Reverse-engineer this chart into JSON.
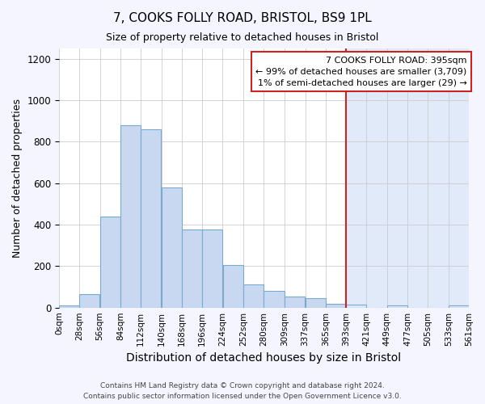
{
  "title": "7, COOKS FOLLY ROAD, BRISTOL, BS9 1PL",
  "subtitle": "Size of property relative to detached houses in Bristol",
  "xlabel": "Distribution of detached houses by size in Bristol",
  "ylabel": "Number of detached properties",
  "bar_color_left": "#c8d8f0",
  "bar_edge_color": "#7aabcf",
  "bar_color_right": "#dce8f8",
  "highlight_bg_color": "#e0eaf8",
  "vline_color": "#cc2222",
  "vline_x": 393,
  "annotation_text": "7 COOKS FOLLY ROAD: 395sqm\n← 99% of detached houses are smaller (3,709)\n1% of semi-detached houses are larger (29) →",
  "bin_edges": [
    0,
    28,
    56,
    84,
    112,
    140,
    168,
    196,
    224,
    252,
    280,
    309,
    337,
    365,
    393,
    421,
    449,
    477,
    505,
    533,
    561
  ],
  "bar_heights": [
    10,
    65,
    440,
    880,
    860,
    580,
    375,
    375,
    205,
    110,
    80,
    55,
    45,
    20,
    15,
    0,
    10,
    0,
    0,
    10
  ],
  "ylim": [
    0,
    1250
  ],
  "yticks": [
    0,
    200,
    400,
    600,
    800,
    1000,
    1200
  ],
  "footer_text": "Contains HM Land Registry data © Crown copyright and database right 2024.\nContains public sector information licensed under the Open Government Licence v3.0.",
  "bg_color": "#f5f5ff",
  "plot_bg_color": "#ffffff"
}
